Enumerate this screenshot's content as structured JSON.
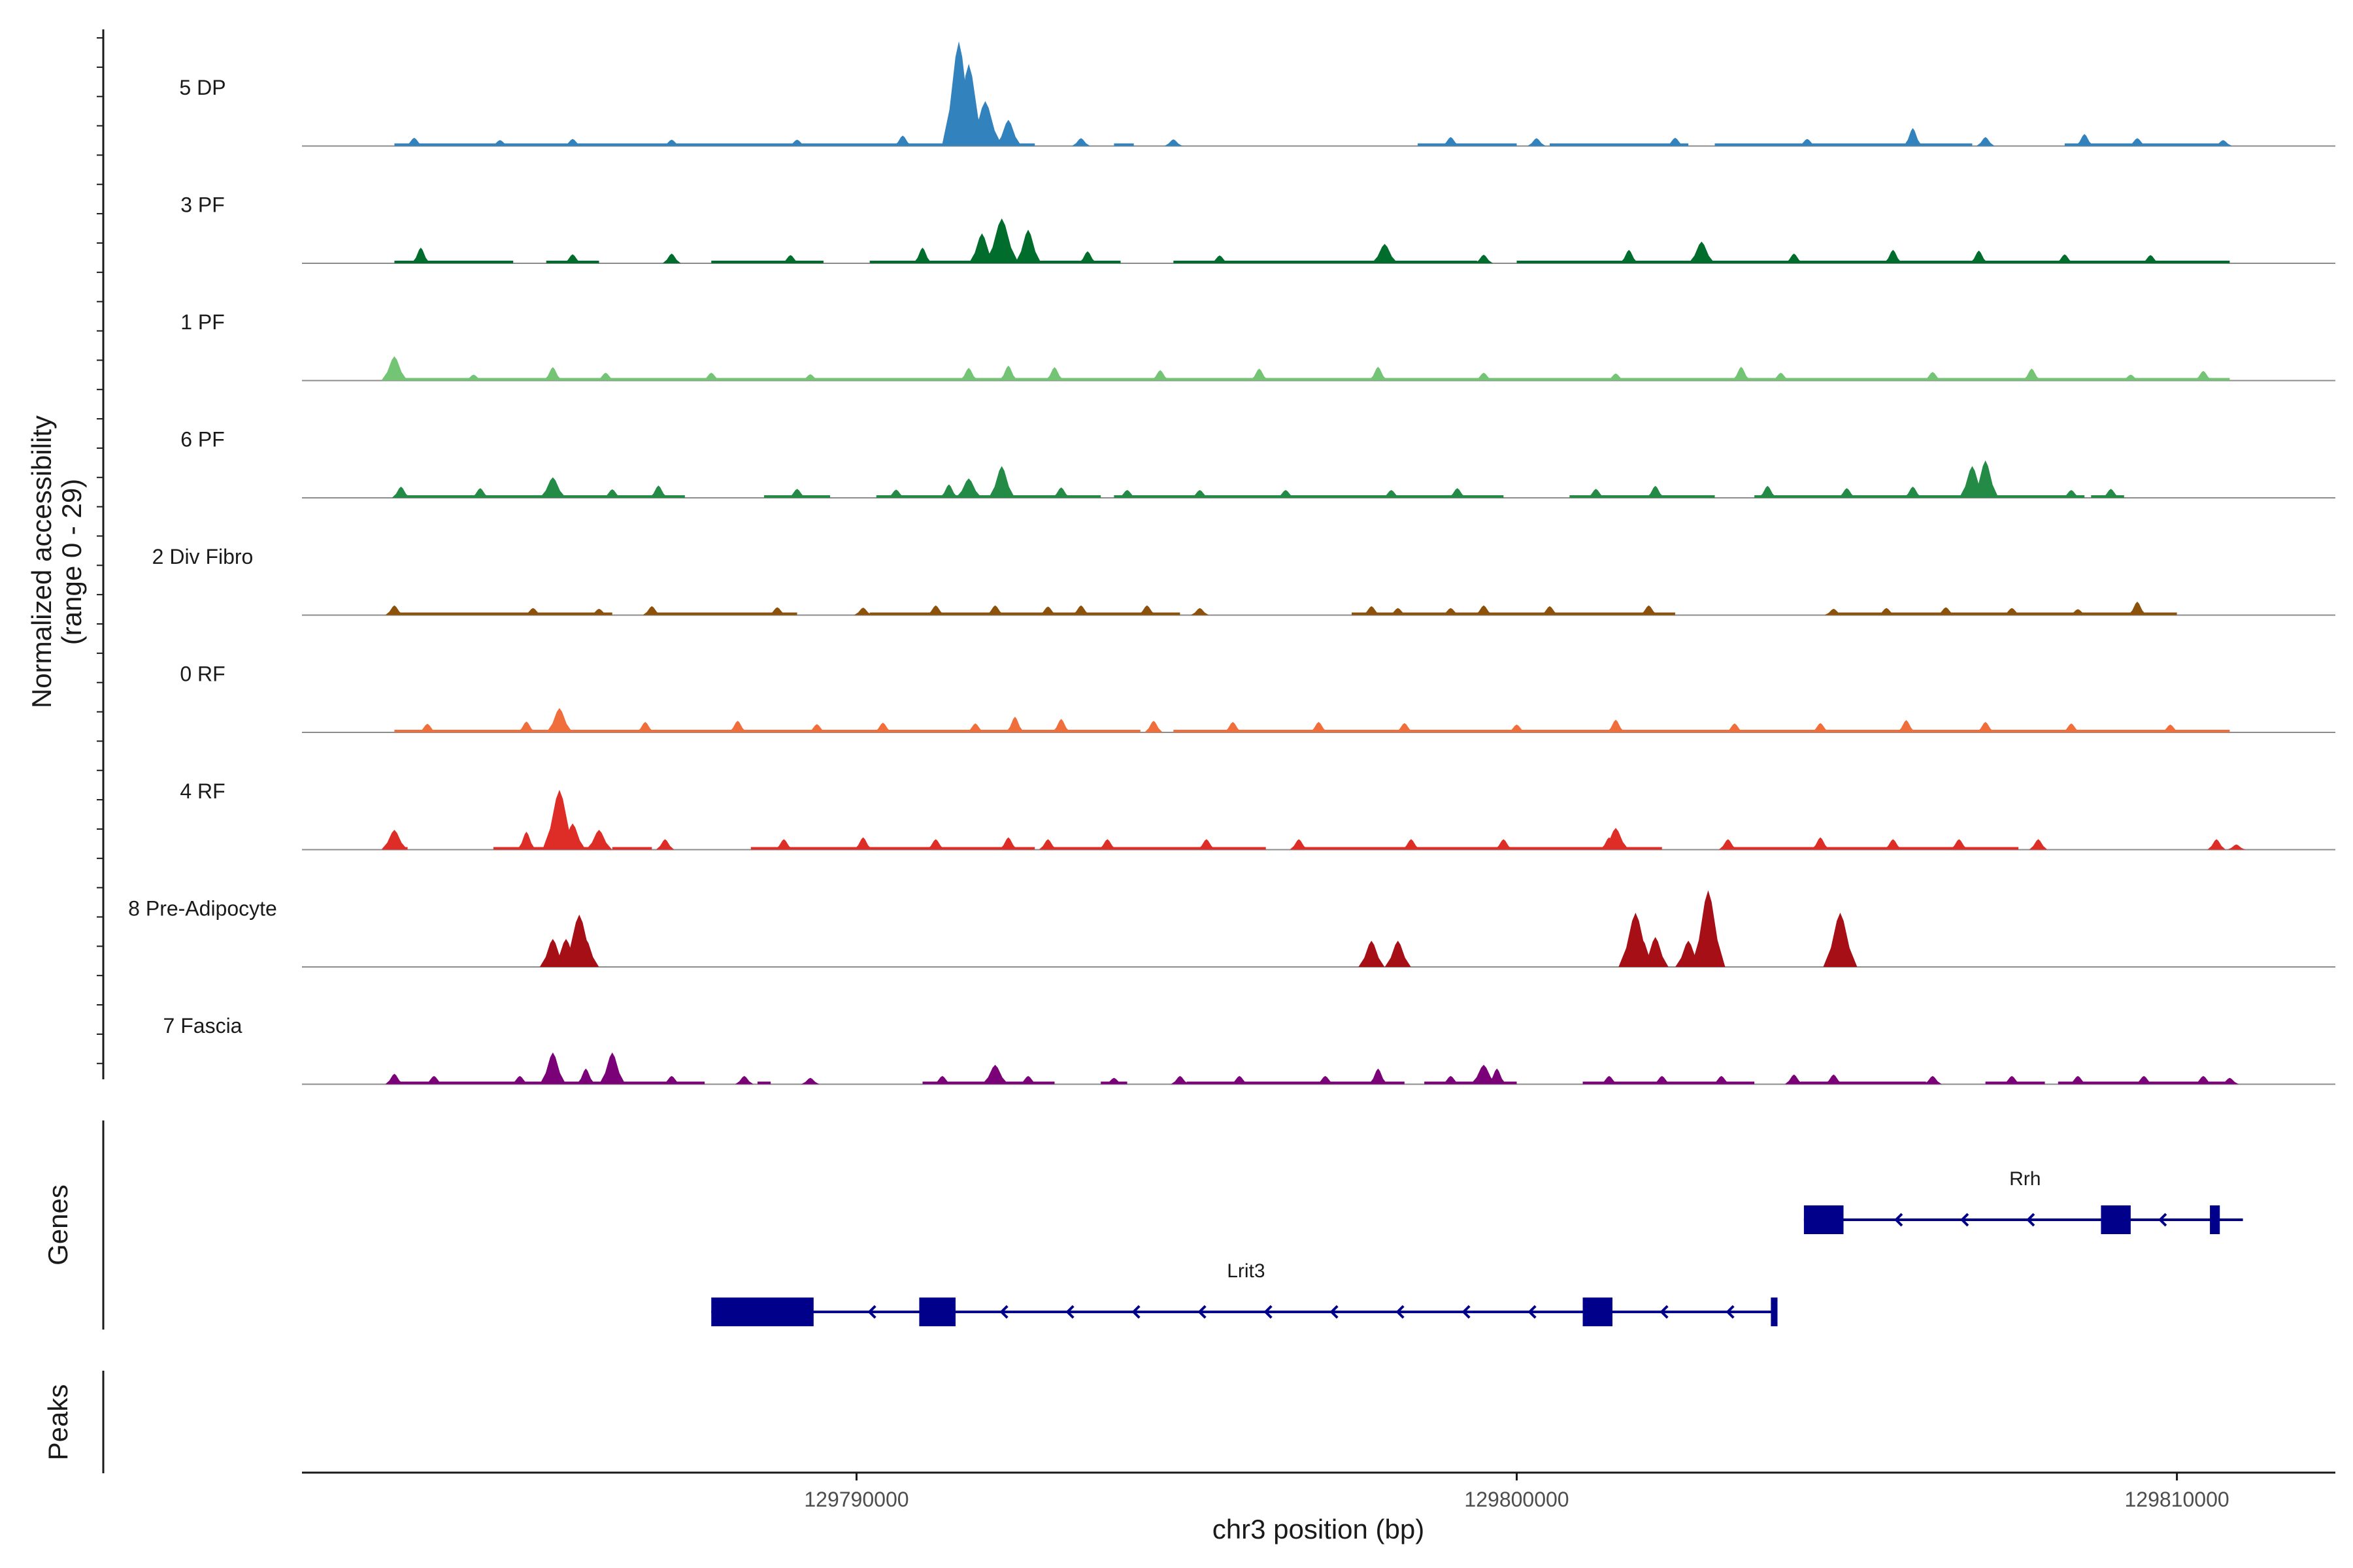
{
  "chart_data": {
    "type": "area",
    "title": "",
    "chromosome": "chr3",
    "xlabel": "chr3 position (bp)",
    "ylabel_line1": "Normalized accessibility",
    "ylabel_line2": "(range 0 - 29)",
    "ylim": [
      0,
      29
    ],
    "xlim": [
      129781600,
      129812400
    ],
    "x_ticks": [
      {
        "value": 129790000,
        "label": "129790000"
      },
      {
        "value": 129800000,
        "label": "129800000"
      },
      {
        "value": 129810000,
        "label": "129810000"
      }
    ],
    "tracks": [
      {
        "name": "5 DP",
        "color": "#3182bd",
        "peaks": [
          [
            129783300,
            2.2
          ],
          [
            129784600,
            1.6
          ],
          [
            129785700,
            1.9
          ],
          [
            129787200,
            1.7
          ],
          [
            129789100,
            1.7
          ],
          [
            129790700,
            2.8
          ],
          [
            129791550,
            28
          ],
          [
            129791700,
            22
          ],
          [
            129791950,
            12
          ],
          [
            129792300,
            7
          ],
          [
            129793400,
            2.1
          ],
          [
            129794800,
            1.8
          ],
          [
            129799000,
            2.4
          ],
          [
            129800300,
            2.1
          ],
          [
            129802400,
            2.2
          ],
          [
            129804400,
            1.9
          ],
          [
            129806000,
            4.8
          ],
          [
            129807100,
            2.4
          ],
          [
            129808600,
            3.2
          ],
          [
            129809400,
            2.1
          ],
          [
            129810700,
            1.6
          ]
        ],
        "baseline_segments": [
          [
            129783000,
            129792700
          ],
          [
            129793900,
            129794200
          ],
          [
            129798500,
            129800000
          ],
          [
            129800500,
            129802600
          ],
          [
            129803000,
            129806900
          ],
          [
            129808300,
            129810700
          ]
        ]
      },
      {
        "name": "3 PF",
        "color": "#006d2c",
        "peaks": [
          [
            129783400,
            4.2
          ],
          [
            129785700,
            2.4
          ],
          [
            129787200,
            2.6
          ],
          [
            129789000,
            2.2
          ],
          [
            129791000,
            4.2
          ],
          [
            129791900,
            8
          ],
          [
            129792200,
            12
          ],
          [
            129792600,
            9
          ],
          [
            129793500,
            3.2
          ],
          [
            129795500,
            2.1
          ],
          [
            129798000,
            5.2
          ],
          [
            129799500,
            2.3
          ],
          [
            129801700,
            3.6
          ],
          [
            129802800,
            5.8
          ],
          [
            129804200,
            2.6
          ],
          [
            129805700,
            3.6
          ],
          [
            129807000,
            3.4
          ],
          [
            129808300,
            2.4
          ],
          [
            129809600,
            2.2
          ]
        ],
        "baseline_segments": [
          [
            129783000,
            129784800
          ],
          [
            129785300,
            129786100
          ],
          [
            129787800,
            129789500
          ],
          [
            129790200,
            129794000
          ],
          [
            129794800,
            129799400
          ],
          [
            129800000,
            129810800
          ]
        ]
      },
      {
        "name": "1 PF",
        "color": "#74c476",
        "peaks": [
          [
            129783000,
            6.5
          ],
          [
            129784200,
            1.6
          ],
          [
            129785400,
            3.6
          ],
          [
            129786200,
            2.1
          ],
          [
            129787800,
            2.1
          ],
          [
            129789300,
            1.7
          ],
          [
            129791700,
            3.4
          ],
          [
            129792300,
            4
          ],
          [
            129793000,
            3.6
          ],
          [
            129794600,
            2.8
          ],
          [
            129796100,
            3.2
          ],
          [
            129797900,
            3.7
          ],
          [
            129799500,
            2.1
          ],
          [
            129801500,
            1.9
          ],
          [
            129803400,
            3.7
          ],
          [
            129804000,
            2.1
          ],
          [
            129806300,
            2.3
          ],
          [
            129807800,
            3.2
          ],
          [
            129809300,
            1.6
          ],
          [
            129810400,
            2.6
          ]
        ],
        "baseline_segments": [
          [
            129783000,
            129810800
          ]
        ]
      },
      {
        "name": "6 PF",
        "color": "#238b45",
        "peaks": [
          [
            129783100,
            3
          ],
          [
            129784300,
            2.6
          ],
          [
            129785400,
            5.5
          ],
          [
            129786300,
            2.3
          ],
          [
            129787000,
            3.3
          ],
          [
            129789100,
            2.4
          ],
          [
            129790600,
            2.2
          ],
          [
            129791400,
            3.6
          ],
          [
            129791700,
            5.2
          ],
          [
            129792200,
            8.5
          ],
          [
            129793100,
            2.8
          ],
          [
            129794100,
            2.1
          ],
          [
            129795200,
            2.1
          ],
          [
            129796500,
            2.1
          ],
          [
            129798100,
            2.1
          ],
          [
            129799100,
            2.6
          ],
          [
            129801200,
            2.4
          ],
          [
            129802100,
            3.2
          ],
          [
            129803800,
            3.2
          ],
          [
            129805000,
            2.6
          ],
          [
            129806000,
            3
          ],
          [
            129806900,
            8.5
          ],
          [
            129807100,
            10
          ],
          [
            129808400,
            2.1
          ],
          [
            129809000,
            2.4
          ]
        ],
        "baseline_segments": [
          [
            129783000,
            129787400
          ],
          [
            129788600,
            129789600
          ],
          [
            129790300,
            129793700
          ],
          [
            129793900,
            129799800
          ],
          [
            129800800,
            129803000
          ],
          [
            129803600,
            129808600
          ],
          [
            129808700,
            129809200
          ]
        ]
      },
      {
        "name": "2 Div Fibro",
        "color": "#8c510a",
        "peaks": [
          [
            129783000,
            2.6
          ],
          [
            129785100,
            1.9
          ],
          [
            129786100,
            1.7
          ],
          [
            129786900,
            2.4
          ],
          [
            129788800,
            2.1
          ],
          [
            129790100,
            2
          ],
          [
            129791200,
            2.6
          ],
          [
            129792100,
            2.6
          ],
          [
            129792900,
            2.3
          ],
          [
            129793400,
            2.6
          ],
          [
            129794400,
            2.6
          ],
          [
            129795200,
            1.9
          ],
          [
            129797800,
            2.4
          ],
          [
            129798200,
            1.9
          ],
          [
            129799000,
            1.9
          ],
          [
            129799500,
            2.6
          ],
          [
            129800500,
            2.4
          ],
          [
            129802000,
            2.6
          ],
          [
            129804800,
            1.7
          ],
          [
            129805600,
            1.9
          ],
          [
            129806500,
            2.1
          ],
          [
            129807500,
            1.9
          ],
          [
            129808500,
            1.6
          ],
          [
            129809400,
            3.6
          ]
        ],
        "baseline_segments": [
          [
            129783000,
            129786300
          ],
          [
            129786900,
            129789100
          ],
          [
            129790200,
            129794900
          ],
          [
            129797500,
            129802400
          ],
          [
            129804800,
            129810000
          ]
        ]
      },
      {
        "name": "0 RF",
        "color": "#ef6e3b",
        "peaks": [
          [
            129783500,
            2.3
          ],
          [
            129785000,
            2.9
          ],
          [
            129785500,
            6.5
          ],
          [
            129786800,
            2.8
          ],
          [
            129788200,
            3.1
          ],
          [
            129789400,
            2.2
          ],
          [
            129790400,
            2.6
          ],
          [
            129791800,
            2.4
          ],
          [
            129792400,
            4.2
          ],
          [
            129793100,
            3.6
          ],
          [
            129794500,
            3.1
          ],
          [
            129795700,
            2.8
          ],
          [
            129797000,
            2.8
          ],
          [
            129798300,
            2.5
          ],
          [
            129800000,
            2.1
          ],
          [
            129801500,
            3.4
          ],
          [
            129803300,
            2.4
          ],
          [
            129804600,
            2.5
          ],
          [
            129805900,
            3.3
          ],
          [
            129807100,
            2.8
          ],
          [
            129808400,
            2.4
          ],
          [
            129809900,
            2.1
          ]
        ],
        "baseline_segments": [
          [
            129783000,
            129794300
          ],
          [
            129794800,
            129810800
          ]
        ]
      },
      {
        "name": "4 RF",
        "color": "#de2d26",
        "peaks": [
          [
            129783000,
            5.3
          ],
          [
            129785000,
            4.8
          ],
          [
            129785500,
            16
          ],
          [
            129785700,
            7
          ],
          [
            129786100,
            5.3
          ],
          [
            129787100,
            2.8
          ],
          [
            129788900,
            2.8
          ],
          [
            129790100,
            3.3
          ],
          [
            129791200,
            2.8
          ],
          [
            129792300,
            3.3
          ],
          [
            129792900,
            2.8
          ],
          [
            129793800,
            2.8
          ],
          [
            129795300,
            2.8
          ],
          [
            129796700,
            2.8
          ],
          [
            129798400,
            2.8
          ],
          [
            129799800,
            2.8
          ],
          [
            129801400,
            3.3
          ],
          [
            129801500,
            5.8
          ],
          [
            129803200,
            2.8
          ],
          [
            129804600,
            3.3
          ],
          [
            129805700,
            2.8
          ],
          [
            129806700,
            2.8
          ],
          [
            129807900,
            2.8
          ],
          [
            129810600,
            2.8
          ],
          [
            129810900,
            1.4
          ]
        ],
        "baseline_segments": [
          [
            129783000,
            129783200
          ],
          [
            129784500,
            129786200
          ],
          [
            129786300,
            129786900
          ],
          [
            129788400,
            129792700
          ],
          [
            129792900,
            129796200
          ],
          [
            129796700,
            129802200
          ],
          [
            129803200,
            129807600
          ],
          [
            129810600,
            129810700
          ]
        ]
      },
      {
        "name": "8 Pre-Adipocyte",
        "color": "#a50f15",
        "peaks": [
          [
            129785400,
            7.5
          ],
          [
            129785600,
            7.5
          ],
          [
            129785800,
            14
          ],
          [
            129785900,
            7.5
          ],
          [
            129797800,
            7
          ],
          [
            129798200,
            7
          ],
          [
            129801800,
            14.5
          ],
          [
            129801900,
            7.5
          ],
          [
            129802100,
            8
          ],
          [
            129802600,
            7
          ],
          [
            129802900,
            20.5
          ],
          [
            129804900,
            14.5
          ]
        ],
        "baseline_segments": []
      },
      {
        "name": "7 Fascia",
        "color": "#7a0177",
        "peaks": [
          [
            129783000,
            2.8
          ],
          [
            129783600,
            2.2
          ],
          [
            129784900,
            2.2
          ],
          [
            129785400,
            8.5
          ],
          [
            129785900,
            4.2
          ],
          [
            129786300,
            8.5
          ],
          [
            129787200,
            2.2
          ],
          [
            129788300,
            2.2
          ],
          [
            129789300,
            1.7
          ],
          [
            129791300,
            2.2
          ],
          [
            129792100,
            5.2
          ],
          [
            129792600,
            2.2
          ],
          [
            129793900,
            1.7
          ],
          [
            129794900,
            2.2
          ],
          [
            129795800,
            2.2
          ],
          [
            129797100,
            2.2
          ],
          [
            129797900,
            4.2
          ],
          [
            129799000,
            2.2
          ],
          [
            129799500,
            5.2
          ],
          [
            129799700,
            4.2
          ],
          [
            129801400,
            2.2
          ],
          [
            129802200,
            2.2
          ],
          [
            129803100,
            2.2
          ],
          [
            129804200,
            2.6
          ],
          [
            129804800,
            2.6
          ],
          [
            129806300,
            2.2
          ],
          [
            129807500,
            2.2
          ],
          [
            129808500,
            2.2
          ],
          [
            129809500,
            2.2
          ],
          [
            129810400,
            2.2
          ],
          [
            129810800,
            1.7
          ]
        ],
        "baseline_segments": [
          [
            129783000,
            129787700
          ],
          [
            129788500,
            129788700
          ],
          [
            129791000,
            129793000
          ],
          [
            129793700,
            129794100
          ],
          [
            129795000,
            129798300
          ],
          [
            129798600,
            129800000
          ],
          [
            129801000,
            129803600
          ],
          [
            129804300,
            129806200
          ],
          [
            129807100,
            129808000
          ],
          [
            129808200,
            129810800
          ]
        ]
      }
    ],
    "genes": [
      {
        "name": "Lrit3",
        "strand": "-",
        "start": 129787800,
        "end": 129803900,
        "exons": [
          [
            129787800,
            129789350
          ],
          [
            129790950,
            129791500
          ],
          [
            129801000,
            129801450
          ],
          [
            129803850,
            129803950
          ]
        ]
      },
      {
        "name": "Rrh",
        "strand": "-",
        "start": 129804350,
        "end": 129811000,
        "exons": [
          [
            129804350,
            129804950
          ],
          [
            129808850,
            129809300
          ],
          [
            129810500,
            129810650
          ]
        ]
      }
    ],
    "side_labels": {
      "genes": "Genes",
      "peaks": "Peaks"
    }
  }
}
